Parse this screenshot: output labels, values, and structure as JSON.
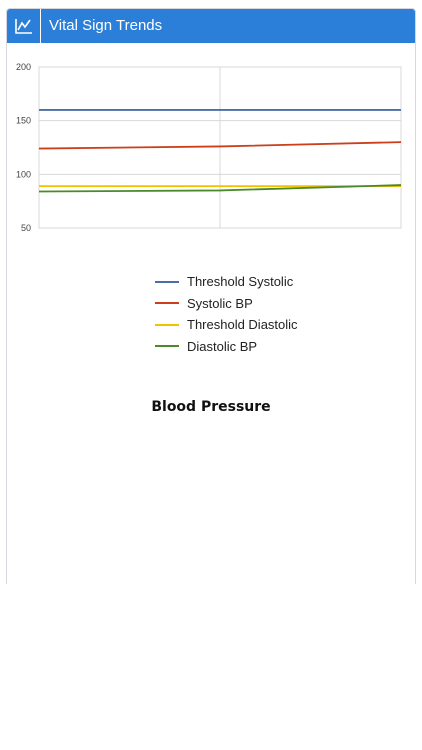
{
  "header": {
    "title": "Vital Sign Trends",
    "icon": "line-chart-icon"
  },
  "colors": {
    "header_bg": "#2b7fd8",
    "grid": "#d8d8d8"
  },
  "chart_data": {
    "type": "line",
    "title": "Blood Pressure",
    "xlabel": "",
    "ylabel": "",
    "ylim": [
      50,
      200
    ],
    "yticks": [
      200,
      150,
      100,
      50
    ],
    "x": [
      0,
      1,
      2
    ],
    "grid": true,
    "legend_position": "bottom",
    "series": [
      {
        "name": "Threshold Systolic",
        "color": "#4a6fa5",
        "values": [
          160,
          160,
          160
        ]
      },
      {
        "name": "Systolic BP",
        "color": "#cc3f1a",
        "values": [
          124,
          126,
          130
        ]
      },
      {
        "name": "Threshold Diastolic",
        "color": "#f2c200",
        "values": [
          89,
          89,
          89
        ]
      },
      {
        "name": "Diastolic BP",
        "color": "#4a8a2a",
        "values": [
          84,
          85,
          90
        ]
      }
    ]
  }
}
